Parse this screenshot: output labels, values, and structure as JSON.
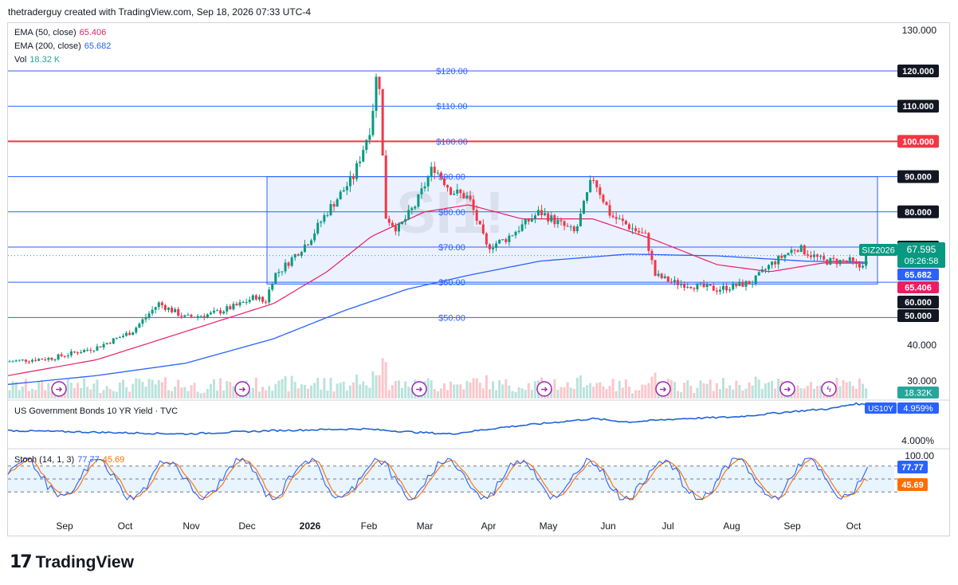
{
  "header": {
    "attribution": "thetraderguy created with TradingView.com, Sep 18, 2026 07:33 UTC-4"
  },
  "legend": {
    "ema50": {
      "label": "EMA (50, close)",
      "value": "65.406",
      "color": "#e91e63"
    },
    "ema200": {
      "label": "EMA (200, close)",
      "value": "65.682",
      "color": "#2962ff"
    },
    "vol": {
      "label": "Vol",
      "value": "18.32 K",
      "color": "#26a69a"
    }
  },
  "watermark": "SI1!",
  "price_axis": {
    "ticks": [
      "130.000",
      "40.000",
      "30.000"
    ]
  },
  "level_tags": [
    {
      "text": "120.000",
      "bg": "#131722",
      "value": 120
    },
    {
      "text": "110.000",
      "bg": "#131722",
      "value": 110
    },
    {
      "text": "100.000",
      "bg": "#f23645",
      "value": 100
    },
    {
      "text": "90.000",
      "bg": "#131722",
      "value": 90
    },
    {
      "text": "80.000",
      "bg": "#131722",
      "value": 80
    },
    {
      "text": "70.000",
      "bg": "#131722",
      "value": 70
    },
    {
      "text": "60.000",
      "bg": "#131722",
      "value": 60
    },
    {
      "text": "50.000",
      "bg": "#131722",
      "value": 50
    }
  ],
  "price_labels": [
    "$120.00",
    "$110.00",
    "$100.00",
    "$90.00",
    "$80.00",
    "$70.00",
    "$60.00",
    "$50.00"
  ],
  "last_price": {
    "symbol": "SIZ2026",
    "price": "67.595",
    "countdown": "09:26:58"
  },
  "ema_tags": {
    "ema200": "65.682",
    "ema50": "65.406"
  },
  "vol_tag": "18.32K",
  "us10y": {
    "title": "US Government Bonds 10 YR Yield · TVC",
    "symbol": "US10Y",
    "value": "4.959%",
    "axis": "4.000%"
  },
  "stoch": {
    "title": "Stoch (14, 1, 3)",
    "k": "77.77",
    "d": "45.69",
    "axis_top": "100.00",
    "k_color": "#2962ff",
    "d_color": "#ff6d00"
  },
  "time_axis": [
    "Sep",
    "Oct",
    "Nov",
    "Dec",
    "2026",
    "Feb",
    "Mar",
    "Apr",
    "May",
    "Jun",
    "Jul",
    "Aug",
    "Sep",
    "Oct"
  ],
  "branding": {
    "logo_text": "TradingView"
  },
  "chart_data": {
    "type": "candlestick",
    "title": "SI1!",
    "y_range": [
      27,
      132
    ],
    "key_levels": [
      120,
      110,
      100,
      90,
      80,
      70,
      60,
      50
    ],
    "range_box": {
      "low": 59.5,
      "high": 90
    },
    "price_path": [
      {
        "t": 0,
        "v": 37.5
      },
      {
        "t": 0.05,
        "v": 38.5
      },
      {
        "t": 0.1,
        "v": 41.5
      },
      {
        "t": 0.14,
        "v": 46
      },
      {
        "t": 0.17,
        "v": 54
      },
      {
        "t": 0.2,
        "v": 50
      },
      {
        "t": 0.23,
        "v": 51
      },
      {
        "t": 0.26,
        "v": 53.5
      },
      {
        "t": 0.28,
        "v": 56
      },
      {
        "t": 0.29,
        "v": 54
      },
      {
        "t": 0.3,
        "v": 62
      },
      {
        "t": 0.31,
        "v": 64
      },
      {
        "t": 0.34,
        "v": 72
      },
      {
        "t": 0.36,
        "v": 80
      },
      {
        "t": 0.39,
        "v": 90
      },
      {
        "t": 0.41,
        "v": 105
      },
      {
        "t": 0.415,
        "v": 118
      },
      {
        "t": 0.42,
        "v": 116
      },
      {
        "t": 0.425,
        "v": 79
      },
      {
        "t": 0.44,
        "v": 75
      },
      {
        "t": 0.46,
        "v": 82
      },
      {
        "t": 0.48,
        "v": 93
      },
      {
        "t": 0.5,
        "v": 86
      },
      {
        "t": 0.52,
        "v": 84
      },
      {
        "t": 0.54,
        "v": 70
      },
      {
        "t": 0.56,
        "v": 72
      },
      {
        "t": 0.6,
        "v": 80
      },
      {
        "t": 0.64,
        "v": 74
      },
      {
        "t": 0.66,
        "v": 90
      },
      {
        "t": 0.68,
        "v": 79
      },
      {
        "t": 0.72,
        "v": 73
      },
      {
        "t": 0.73,
        "v": 62
      },
      {
        "t": 0.75,
        "v": 60
      },
      {
        "t": 0.8,
        "v": 58
      },
      {
        "t": 0.84,
        "v": 60
      },
      {
        "t": 0.86,
        "v": 65
      },
      {
        "t": 0.89,
        "v": 70
      },
      {
        "t": 0.92,
        "v": 66
      },
      {
        "t": 0.95,
        "v": 66
      },
      {
        "t": 0.96,
        "v": 64
      },
      {
        "t": 0.97,
        "v": 67.6
      }
    ],
    "ema50_path": [
      {
        "t": 0,
        "v": 33.5
      },
      {
        "t": 0.1,
        "v": 38
      },
      {
        "t": 0.2,
        "v": 46
      },
      {
        "t": 0.3,
        "v": 54
      },
      {
        "t": 0.36,
        "v": 63
      },
      {
        "t": 0.41,
        "v": 73
      },
      {
        "t": 0.47,
        "v": 80
      },
      {
        "t": 0.52,
        "v": 82
      },
      {
        "t": 0.58,
        "v": 78
      },
      {
        "t": 0.66,
        "v": 78
      },
      {
        "t": 0.73,
        "v": 72
      },
      {
        "t": 0.8,
        "v": 65
      },
      {
        "t": 0.86,
        "v": 63
      },
      {
        "t": 0.92,
        "v": 65.5
      },
      {
        "t": 0.97,
        "v": 65.4
      }
    ],
    "ema200_path": [
      {
        "t": 0,
        "v": 31
      },
      {
        "t": 0.1,
        "v": 33.5
      },
      {
        "t": 0.2,
        "v": 37
      },
      {
        "t": 0.3,
        "v": 44
      },
      {
        "t": 0.38,
        "v": 52
      },
      {
        "t": 0.45,
        "v": 58
      },
      {
        "t": 0.52,
        "v": 62
      },
      {
        "t": 0.6,
        "v": 66
      },
      {
        "t": 0.7,
        "v": 68
      },
      {
        "t": 0.8,
        "v": 67.5
      },
      {
        "t": 0.9,
        "v": 66
      },
      {
        "t": 0.97,
        "v": 65.7
      }
    ],
    "us10y_path": [
      {
        "t": 0,
        "v": 4.2
      },
      {
        "t": 0.1,
        "v": 4.15
      },
      {
        "t": 0.2,
        "v": 4.1
      },
      {
        "t": 0.3,
        "v": 4.2
      },
      {
        "t": 0.4,
        "v": 4.25
      },
      {
        "t": 0.46,
        "v": 4.15
      },
      {
        "t": 0.5,
        "v": 4.1
      },
      {
        "t": 0.56,
        "v": 4.3
      },
      {
        "t": 0.62,
        "v": 4.45
      },
      {
        "t": 0.66,
        "v": 4.55
      },
      {
        "t": 0.7,
        "v": 4.45
      },
      {
        "t": 0.76,
        "v": 4.55
      },
      {
        "t": 0.82,
        "v": 4.6
      },
      {
        "t": 0.88,
        "v": 4.75
      },
      {
        "t": 0.93,
        "v": 4.85
      },
      {
        "t": 0.955,
        "v": 4.99
      },
      {
        "t": 0.97,
        "v": 4.96
      }
    ]
  }
}
